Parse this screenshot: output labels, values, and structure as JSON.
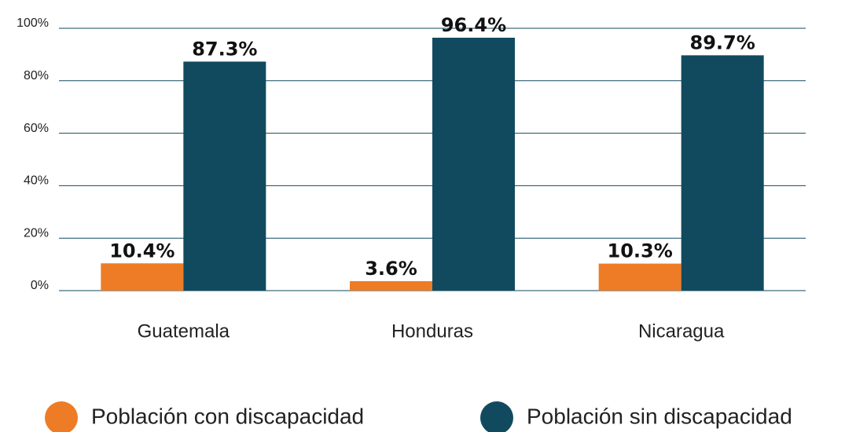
{
  "chart_data": {
    "type": "bar",
    "categories": [
      "Guatemala",
      "Honduras",
      "Nicaragua"
    ],
    "series": [
      {
        "name": "Población con discapacidad",
        "color": "#ee7c26",
        "values": [
          10.4,
          3.6,
          10.3
        ],
        "value_labels": [
          "10.4%",
          "3.6%",
          "10.3%"
        ]
      },
      {
        "name": "Población sin discapacidad",
        "color": "#114a5e",
        "values": [
          87.3,
          96.4,
          89.7
        ],
        "value_labels": [
          "87.3%",
          "96.4%",
          "89.7%"
        ]
      }
    ],
    "ylim": [
      0,
      100
    ],
    "yticks": [
      {
        "value": 0,
        "label": "0%"
      },
      {
        "value": 20,
        "label": "20%"
      },
      {
        "value": 40,
        "label": "40%"
      },
      {
        "value": 60,
        "label": "60%"
      },
      {
        "value": 80,
        "label": "80%"
      },
      {
        "value": 100,
        "label": "100%"
      }
    ],
    "grid": true,
    "legend": "bottom"
  }
}
